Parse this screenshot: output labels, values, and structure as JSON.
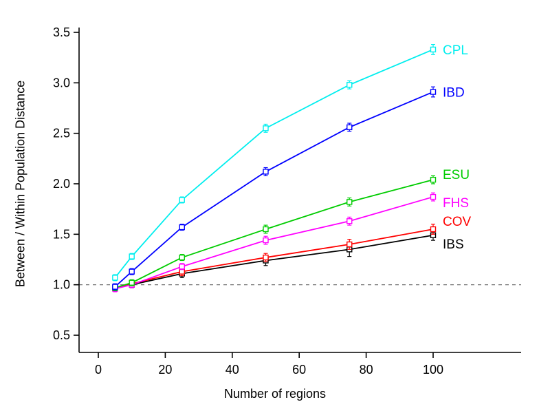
{
  "chart_data": {
    "type": "line",
    "title": "",
    "xlabel": "Number of regions",
    "ylabel": "Between / Within Population Distance",
    "x": [
      5,
      10,
      25,
      50,
      75,
      100
    ],
    "xlim": [
      0,
      118
    ],
    "ylim": [
      0.5,
      3.5
    ],
    "xticks": [
      "0",
      "20",
      "40",
      "60",
      "80",
      "100"
    ],
    "yticks": [
      "0.5",
      "1.0",
      "1.5",
      "2.0",
      "2.5",
      "3.0",
      "3.5"
    ],
    "grid": false,
    "legend_position": "labels-at-line-ends",
    "marker": "open-square",
    "error_bars": true,
    "reference_line": {
      "y": 1.0,
      "style": "dashed",
      "color": "#666666"
    },
    "axis_color": "#000000",
    "background": "#ffffff",
    "series": [
      {
        "name": "CPL",
        "color": "#00EEEE",
        "label_dy": 0,
        "values": [
          1.07,
          1.28,
          1.84,
          2.55,
          2.98,
          3.33
        ],
        "errors": [
          0.03,
          0.03,
          0.03,
          0.04,
          0.04,
          0.05
        ]
      },
      {
        "name": "IBD",
        "color": "#0000FF",
        "label_dy": 0,
        "values": [
          0.98,
          1.13,
          1.57,
          2.12,
          2.56,
          2.91
        ],
        "errors": [
          0.03,
          0.03,
          0.03,
          0.04,
          0.04,
          0.05
        ]
      },
      {
        "name": "ESU",
        "color": "#00CC00",
        "label_dy": -8,
        "values": [
          0.97,
          1.02,
          1.27,
          1.55,
          1.82,
          2.04
        ],
        "errors": [
          0.03,
          0.03,
          0.03,
          0.04,
          0.04,
          0.04
        ]
      },
      {
        "name": "FHS",
        "color": "#FF00FF",
        "label_dy": 8,
        "values": [
          0.96,
          1.0,
          1.18,
          1.44,
          1.63,
          1.87
        ],
        "errors": [
          0.03,
          0.03,
          0.03,
          0.04,
          0.04,
          0.04
        ]
      },
      {
        "name": "COV",
        "color": "#FF0000",
        "label_dy": -12,
        "values": [
          0.97,
          1.01,
          1.13,
          1.27,
          1.4,
          1.55
        ],
        "errors": [
          0.03,
          0.03,
          0.04,
          0.04,
          0.05,
          0.05
        ]
      },
      {
        "name": "IBS",
        "color": "#000000",
        "label_dy": 12,
        "values": [
          0.97,
          1.0,
          1.11,
          1.24,
          1.35,
          1.49
        ],
        "errors": [
          0.03,
          0.03,
          0.04,
          0.05,
          0.07,
          0.05
        ]
      }
    ]
  }
}
